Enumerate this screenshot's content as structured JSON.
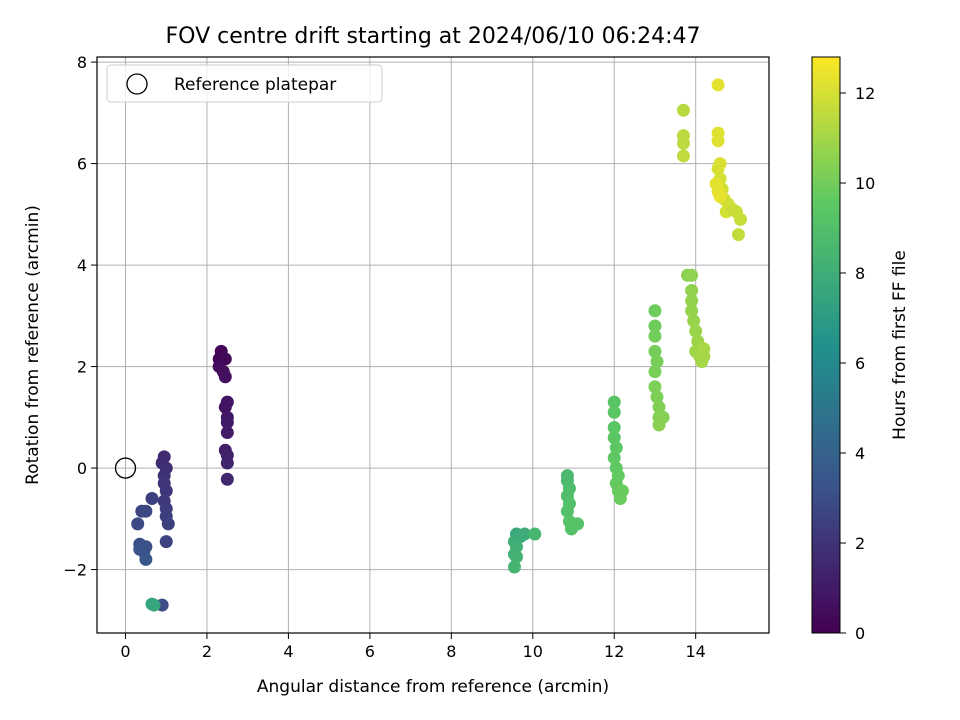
{
  "chart_data": {
    "type": "scatter",
    "title": "FOV centre drift starting at 2024/06/10 06:24:47",
    "xlabel": "Angular distance from reference (arcmin)",
    "ylabel": "Rotation from reference (arcmin)",
    "xlim": [
      -0.7,
      15.8
    ],
    "ylim": [
      -3.25,
      8.1
    ],
    "xticks": [
      0,
      2,
      4,
      6,
      8,
      10,
      12,
      14
    ],
    "xtick_labels": [
      "0",
      "2",
      "4",
      "6",
      "8",
      "10",
      "12",
      "14"
    ],
    "yticks": [
      -2,
      0,
      2,
      4,
      6,
      8
    ],
    "ytick_labels": [
      "−2",
      "0",
      "2",
      "4",
      "6",
      "8"
    ],
    "grid": true,
    "legend": {
      "placement": "top-left",
      "entries": [
        "Reference platepar"
      ]
    },
    "reference_point": {
      "x": 0,
      "y": 0
    },
    "colorbar": {
      "label": "Hours from first FF file",
      "range": [
        0,
        12.8
      ],
      "ticks": [
        0,
        2,
        4,
        6,
        8,
        10,
        12
      ],
      "tick_labels": [
        "0",
        "2",
        "4",
        "6",
        "8",
        "10",
        "12"
      ],
      "colormap": "viridis"
    },
    "points": [
      [
        2.35,
        2.3,
        0.1
      ],
      [
        2.3,
        2.15,
        0.2
      ],
      [
        2.45,
        2.15,
        0.3
      ],
      [
        2.3,
        2.0,
        0.4
      ],
      [
        2.4,
        1.9,
        0.5
      ],
      [
        2.45,
        1.8,
        0.6
      ],
      [
        2.5,
        1.3,
        0.7
      ],
      [
        2.45,
        1.2,
        0.8
      ],
      [
        2.5,
        1.0,
        0.9
      ],
      [
        2.5,
        0.9,
        1.0
      ],
      [
        2.5,
        0.7,
        1.1
      ],
      [
        2.45,
        0.35,
        1.2
      ],
      [
        2.5,
        0.25,
        1.3
      ],
      [
        2.5,
        0.1,
        1.4
      ],
      [
        2.5,
        -0.22,
        1.5
      ],
      [
        0.95,
        0.22,
        1.6
      ],
      [
        0.9,
        0.1,
        1.7
      ],
      [
        1.0,
        0.0,
        1.8
      ],
      [
        0.95,
        -0.15,
        1.9
      ],
      [
        0.95,
        -0.3,
        2.0
      ],
      [
        1.0,
        -0.45,
        2.1
      ],
      [
        0.95,
        -0.65,
        2.2
      ],
      [
        1.0,
        -0.8,
        2.3
      ],
      [
        1.0,
        -0.95,
        2.4
      ],
      [
        1.05,
        -1.1,
        2.5
      ],
      [
        1.0,
        -1.45,
        2.6
      ],
      [
        0.65,
        -0.6,
        2.5
      ],
      [
        0.4,
        -0.85,
        2.7
      ],
      [
        0.5,
        -0.85,
        2.8
      ],
      [
        0.3,
        -1.1,
        2.9
      ],
      [
        0.35,
        -1.5,
        3.0
      ],
      [
        0.5,
        -1.55,
        3.1
      ],
      [
        0.35,
        -1.6,
        3.2
      ],
      [
        0.45,
        -1.65,
        3.3
      ],
      [
        0.5,
        -1.8,
        3.4
      ],
      [
        0.9,
        -2.7,
        3.0
      ],
      [
        0.65,
        -2.68,
        7.5
      ],
      [
        0.7,
        -2.7,
        7.6
      ],
      [
        9.6,
        -1.3,
        7.7
      ],
      [
        9.7,
        -1.35,
        7.8
      ],
      [
        9.8,
        -1.3,
        7.9
      ],
      [
        9.55,
        -1.45,
        8.0
      ],
      [
        9.6,
        -1.55,
        8.1
      ],
      [
        9.55,
        -1.7,
        8.2
      ],
      [
        9.6,
        -1.75,
        8.3
      ],
      [
        9.55,
        -1.95,
        8.4
      ],
      [
        10.05,
        -1.3,
        8.5
      ],
      [
        10.85,
        -0.15,
        8.6
      ],
      [
        10.85,
        -0.25,
        8.7
      ],
      [
        10.9,
        -0.4,
        8.8
      ],
      [
        10.85,
        -0.55,
        8.9
      ],
      [
        10.9,
        -0.7,
        9.0
      ],
      [
        10.85,
        -0.85,
        9.1
      ],
      [
        11.1,
        -1.1,
        9.15
      ],
      [
        10.95,
        -1.2,
        9.2
      ],
      [
        10.9,
        -1.05,
        9.25
      ],
      [
        12.0,
        1.3,
        9.3
      ],
      [
        12.0,
        1.1,
        9.35
      ],
      [
        12.0,
        0.8,
        9.4
      ],
      [
        12.0,
        0.6,
        9.45
      ],
      [
        12.05,
        0.4,
        9.5
      ],
      [
        12.0,
        0.2,
        9.55
      ],
      [
        12.05,
        0.0,
        9.6
      ],
      [
        12.1,
        -0.15,
        9.65
      ],
      [
        12.05,
        -0.3,
        9.7
      ],
      [
        12.1,
        -0.45,
        9.75
      ],
      [
        12.2,
        -0.45,
        9.8
      ],
      [
        12.15,
        -0.6,
        9.85
      ],
      [
        13.0,
        3.1,
        9.9
      ],
      [
        13.0,
        2.8,
        9.95
      ],
      [
        13.0,
        2.6,
        10.0
      ],
      [
        13.0,
        2.3,
        10.05
      ],
      [
        13.05,
        2.1,
        10.1
      ],
      [
        13.0,
        1.9,
        10.15
      ],
      [
        13.0,
        1.6,
        10.2
      ],
      [
        13.05,
        1.4,
        10.25
      ],
      [
        13.1,
        1.2,
        10.3
      ],
      [
        13.1,
        1.0,
        10.35
      ],
      [
        13.2,
        1.0,
        10.4
      ],
      [
        13.1,
        0.85,
        10.45
      ],
      [
        13.8,
        3.8,
        10.5
      ],
      [
        13.9,
        3.8,
        10.55
      ],
      [
        13.9,
        3.5,
        10.6
      ],
      [
        13.9,
        3.3,
        10.65
      ],
      [
        13.9,
        3.1,
        10.7
      ],
      [
        13.95,
        2.9,
        10.75
      ],
      [
        14.0,
        2.7,
        10.8
      ],
      [
        14.05,
        2.5,
        10.85
      ],
      [
        14.0,
        2.3,
        10.9
      ],
      [
        14.1,
        2.2,
        10.95
      ],
      [
        14.2,
        2.2,
        11.0
      ],
      [
        14.15,
        2.1,
        11.05
      ],
      [
        14.2,
        2.35,
        11.1
      ],
      [
        13.7,
        7.05,
        11.4
      ],
      [
        13.7,
        6.55,
        11.45
      ],
      [
        13.7,
        6.4,
        11.5
      ],
      [
        13.7,
        6.15,
        11.55
      ],
      [
        14.55,
        7.55,
        12.3
      ],
      [
        14.55,
        6.6,
        12.2
      ],
      [
        14.55,
        6.45,
        12.15
      ],
      [
        14.6,
        6.0,
        12.1
      ],
      [
        14.55,
        5.9,
        12.05
      ],
      [
        14.6,
        5.7,
        12.0
      ],
      [
        14.65,
        5.5,
        11.95
      ],
      [
        14.7,
        5.3,
        11.9
      ],
      [
        14.8,
        5.2,
        11.85
      ],
      [
        14.75,
        5.05,
        12.0
      ],
      [
        14.9,
        5.1,
        11.8
      ],
      [
        15.0,
        5.05,
        11.75
      ],
      [
        15.1,
        4.9,
        11.7
      ],
      [
        15.05,
        4.6,
        11.65
      ],
      [
        14.5,
        5.6,
        12.25
      ],
      [
        14.55,
        5.45,
        12.3
      ],
      [
        14.6,
        5.35,
        12.35
      ]
    ]
  }
}
